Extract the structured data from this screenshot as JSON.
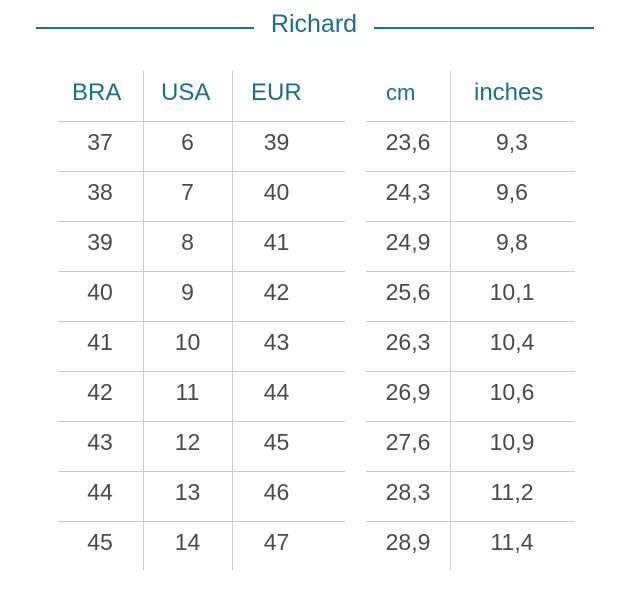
{
  "title": "Richard",
  "headers": {
    "bra": "BRA",
    "usa": "USA",
    "eur": "EUR",
    "cm": "cm",
    "inches": "inches"
  },
  "accent_color": "#1d6f86",
  "rows": [
    {
      "bra": "37",
      "usa": "6",
      "eur": "39",
      "cm": "23,6",
      "inches": "9,3"
    },
    {
      "bra": "38",
      "usa": "7",
      "eur": "40",
      "cm": "24,3",
      "inches": "9,6"
    },
    {
      "bra": "39",
      "usa": "8",
      "eur": "41",
      "cm": "24,9",
      "inches": "9,8"
    },
    {
      "bra": "40",
      "usa": "9",
      "eur": "42",
      "cm": "25,6",
      "inches": "10,1"
    },
    {
      "bra": "41",
      "usa": "10",
      "eur": "43",
      "cm": "26,3",
      "inches": "10,4"
    },
    {
      "bra": "42",
      "usa": "11",
      "eur": "44",
      "cm": "26,9",
      "inches": "10,6"
    },
    {
      "bra": "43",
      "usa": "12",
      "eur": "45",
      "cm": "27,6",
      "inches": "10,9"
    },
    {
      "bra": "44",
      "usa": "13",
      "eur": "46",
      "cm": "28,3",
      "inches": "11,2"
    },
    {
      "bra": "45",
      "usa": "14",
      "eur": "47",
      "cm": "28,9",
      "inches": "11,4"
    }
  ]
}
